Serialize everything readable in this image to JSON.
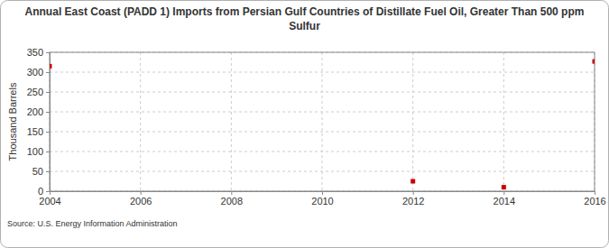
{
  "chart_data": {
    "type": "scatter",
    "title": "Annual East Coast (PADD 1) Imports from Persian Gulf Countries of Distillate Fuel Oil, Greater Than 500 ppm Sulfur",
    "y_label": "Thousand Barrels",
    "source": "Source: U.S. Energy Information Administration",
    "x": [
      2004,
      2012,
      2014,
      2016
    ],
    "values": [
      315,
      25,
      10,
      327
    ],
    "color": "#cc0000",
    "marker": "square",
    "xlim": [
      2004,
      2016
    ],
    "xticks": [
      2004,
      2006,
      2008,
      2010,
      2012,
      2014,
      2016
    ],
    "ylim": [
      0,
      350
    ],
    "yticks": [
      0,
      50,
      100,
      150,
      200,
      250,
      300,
      350
    ],
    "grid": true
  }
}
